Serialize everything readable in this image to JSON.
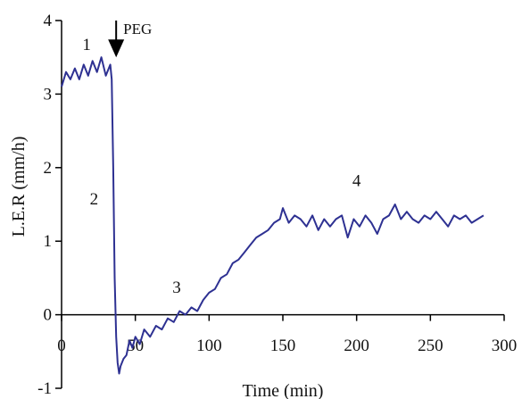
{
  "chart_data": {
    "type": "line",
    "title": "",
    "xlabel": "Time (min)",
    "ylabel": "L.E.R (mm/h)",
    "xlim": [
      0,
      300
    ],
    "ylim": [
      -1,
      4
    ],
    "xticks": [
      "0",
      "50",
      "100",
      "150",
      "200",
      "250",
      "300"
    ],
    "yticks": [
      "-1",
      "0",
      "1",
      "2",
      "3",
      "4"
    ],
    "grid": false,
    "line_color": "#2e3192",
    "series": [
      {
        "name": "",
        "x": [
          0,
          3,
          6,
          9,
          12,
          15,
          18,
          21,
          24,
          27,
          30,
          33,
          34,
          35,
          36,
          37,
          38,
          39,
          40,
          42,
          44,
          46,
          48,
          50,
          53,
          56,
          60,
          64,
          68,
          72,
          76,
          80,
          84,
          88,
          92,
          96,
          100,
          104,
          108,
          112,
          116,
          120,
          124,
          128,
          132,
          136,
          140,
          144,
          148,
          150,
          154,
          158,
          162,
          166,
          170,
          174,
          178,
          182,
          186,
          190,
          194,
          198,
          202,
          206,
          210,
          214,
          218,
          222,
          226,
          230,
          234,
          238,
          242,
          246,
          250,
          254,
          258,
          262,
          266,
          270,
          274,
          278,
          282,
          286
        ],
        "y": [
          3.1,
          3.3,
          3.2,
          3.35,
          3.2,
          3.4,
          3.25,
          3.45,
          3.3,
          3.5,
          3.25,
          3.4,
          3.2,
          2.0,
          0.5,
          -0.3,
          -0.65,
          -0.8,
          -0.7,
          -0.6,
          -0.55,
          -0.35,
          -0.45,
          -0.3,
          -0.4,
          -0.2,
          -0.3,
          -0.15,
          -0.2,
          -0.05,
          -0.1,
          0.05,
          0.0,
          0.1,
          0.05,
          0.2,
          0.3,
          0.35,
          0.5,
          0.55,
          0.7,
          0.75,
          0.85,
          0.95,
          1.05,
          1.1,
          1.15,
          1.25,
          1.3,
          1.45,
          1.25,
          1.35,
          1.3,
          1.2,
          1.35,
          1.15,
          1.3,
          1.2,
          1.3,
          1.35,
          1.05,
          1.3,
          1.2,
          1.35,
          1.25,
          1.1,
          1.3,
          1.35,
          1.5,
          1.3,
          1.4,
          1.3,
          1.25,
          1.35,
          1.3,
          1.4,
          1.3,
          1.2,
          1.35,
          1.3,
          1.35,
          1.25,
          1.3,
          1.35
        ]
      }
    ],
    "annotations": [
      {
        "text": "1",
        "x": 17,
        "y": 3.6
      },
      {
        "text": "2",
        "x": 22,
        "y": 1.5
      },
      {
        "text": "3",
        "x": 78,
        "y": 0.3
      },
      {
        "text": "4",
        "x": 200,
        "y": 1.75
      }
    ],
    "arrow": {
      "label": "PEG",
      "x": 37,
      "y_top": 4.0,
      "y_bottom": 3.5
    }
  }
}
